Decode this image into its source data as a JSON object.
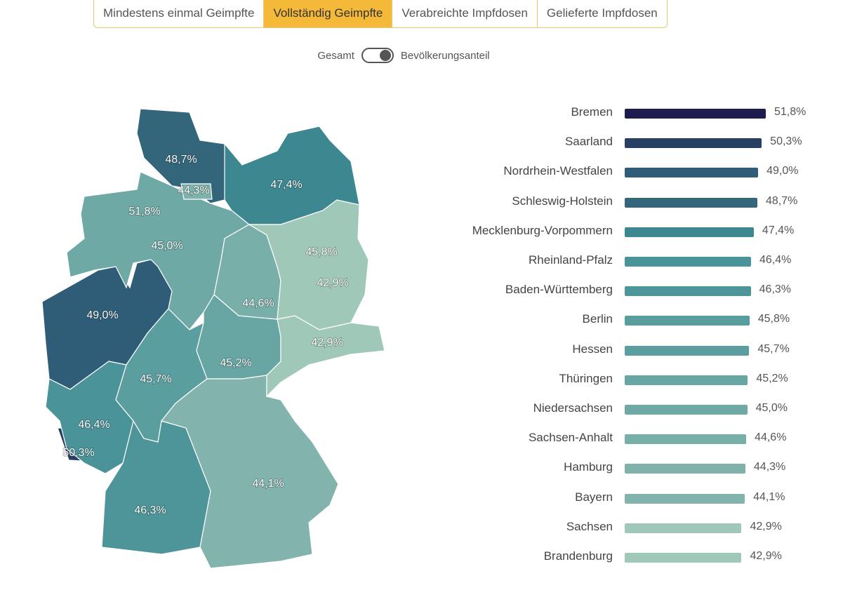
{
  "tabs": [
    "Mindestens einmal Geimpfte",
    "Vollständig Geimpfte",
    "Verabreichte Impfdosen",
    "Gelieferte Impfdosen"
  ],
  "active_tab": 1,
  "toggle": {
    "left_label": "Gesamt",
    "right_label": "Bevölkerungsanteil",
    "state": "right"
  },
  "states": [
    {
      "name": "Bremen",
      "value": 51.8,
      "label": "51,8%",
      "color": "#1e1b4f"
    },
    {
      "name": "Saarland",
      "value": 50.3,
      "label": "50,3%",
      "color": "#273f63"
    },
    {
      "name": "Nordrhein-Westfalen",
      "value": 49.0,
      "label": "49,0%",
      "color": "#2f5d78"
    },
    {
      "name": "Schleswig-Holstein",
      "value": 48.7,
      "label": "48,7%",
      "color": "#33667b"
    },
    {
      "name": "Mecklenburg-Vorpommern",
      "value": 47.4,
      "label": "47,4%",
      "color": "#3d8790"
    },
    {
      "name": "Rheinland-Pfalz",
      "value": 46.4,
      "label": "46,4%",
      "color": "#4a9399"
    },
    {
      "name": "Baden-Württemberg",
      "value": 46.3,
      "label": "46,3%",
      "color": "#4d9599"
    },
    {
      "name": "Berlin",
      "value": 45.8,
      "label": "45,8%",
      "color": "#5a9d9f"
    },
    {
      "name": "Hessen",
      "value": 45.7,
      "label": "45,7%",
      "color": "#5b9e9f"
    },
    {
      "name": "Thüringen",
      "value": 45.2,
      "label": "45,2%",
      "color": "#68a6a3"
    },
    {
      "name": "Niedersachsen",
      "value": 45.0,
      "label": "45,0%",
      "color": "#6ea9a5"
    },
    {
      "name": "Sachsen-Anhalt",
      "value": 44.6,
      "label": "44,6%",
      "color": "#79afa9"
    },
    {
      "name": "Hamburg",
      "value": 44.3,
      "label": "44,3%",
      "color": "#7eb2ab"
    },
    {
      "name": "Bayern",
      "value": 44.1,
      "label": "44,1%",
      "color": "#82b4ad"
    },
    {
      "name": "Sachsen",
      "value": 42.9,
      "label": "42,9%",
      "color": "#a0c8b8"
    },
    {
      "name": "Brandenburg",
      "value": 42.9,
      "label": "42,9%",
      "color": "#a0c8b8"
    }
  ]
}
